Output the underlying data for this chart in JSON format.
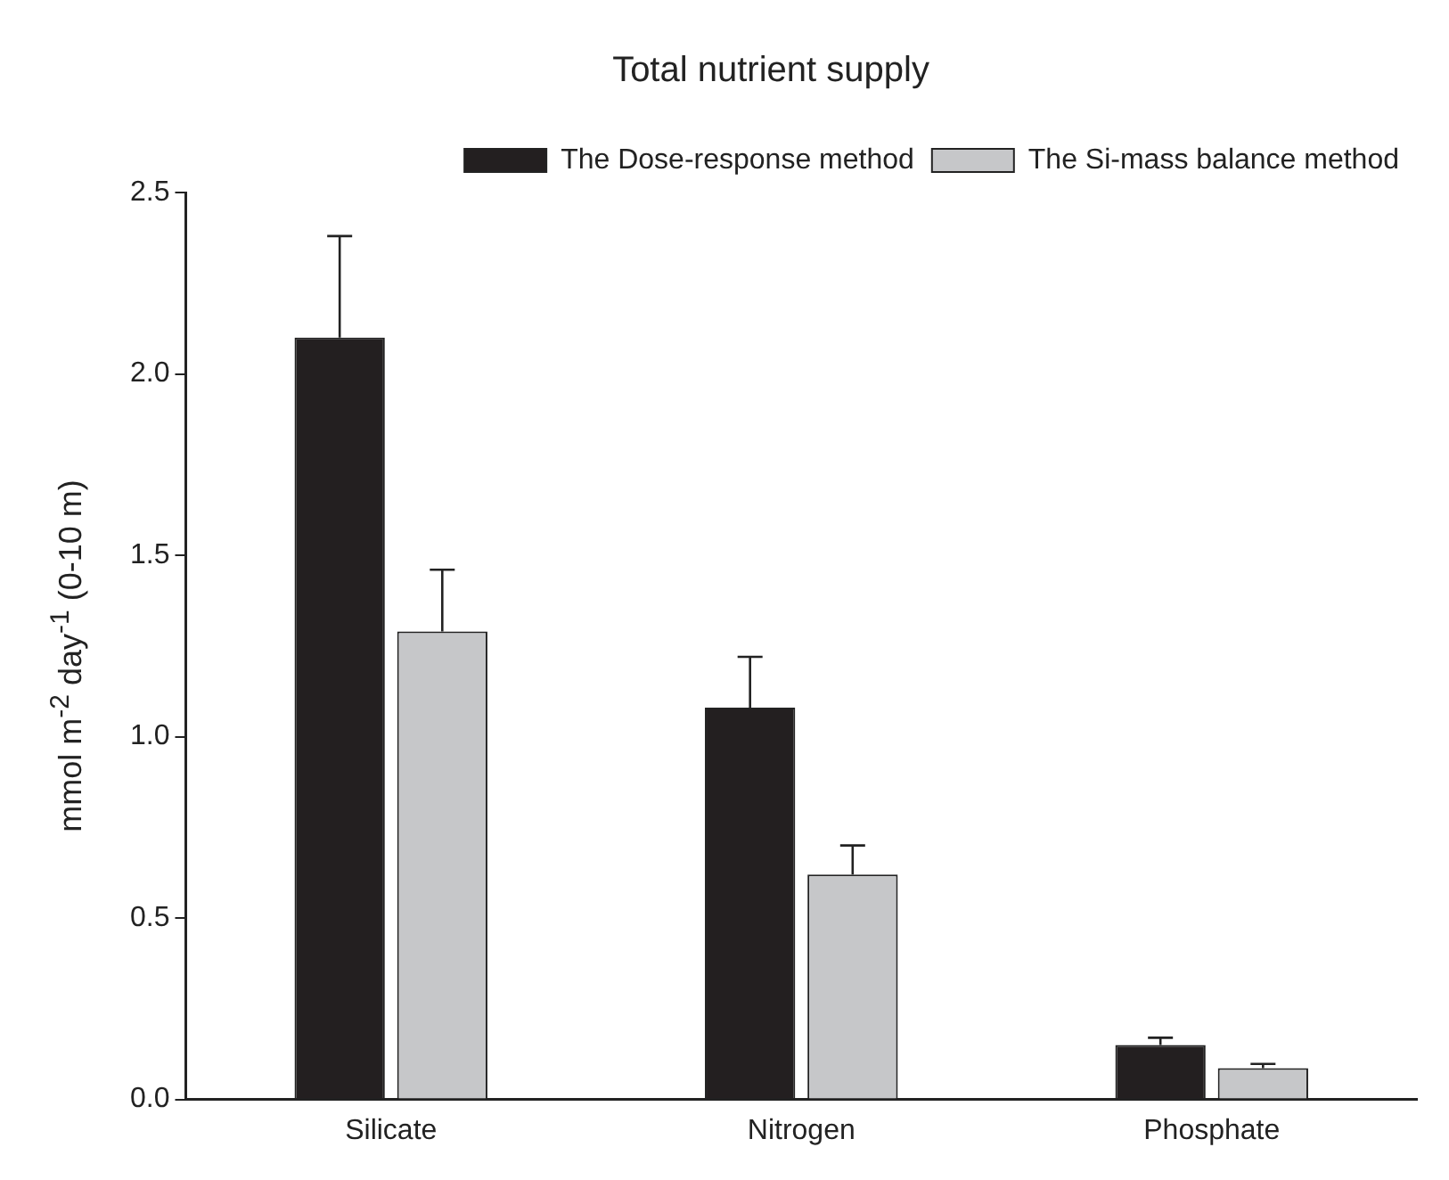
{
  "chart_data": {
    "type": "bar",
    "title": "Total nutrient supply",
    "ylabel": "mmol m$^{-2}$ day$^{-1}$ (0-10 m)",
    "categories": [
      "Silicate",
      "Nitrogen",
      "Phosphate"
    ],
    "series": [
      {
        "name": "The Dose-response method",
        "color": "#231f20",
        "values": [
          2.1,
          1.08,
          0.15
        ],
        "errors": [
          [
            2.1,
            2.38
          ],
          [
            1.08,
            1.22
          ],
          [
            0.15,
            0.17
          ]
        ]
      },
      {
        "name": "The Si-mass balance method",
        "color": "#c6c7c9",
        "values": [
          1.29,
          0.62,
          0.086
        ],
        "errors": [
          [
            1.29,
            1.46
          ],
          [
            0.62,
            0.7
          ],
          [
            0.086,
            0.098
          ]
        ]
      }
    ],
    "ylim": [
      0,
      2.5
    ],
    "yticks": [
      {
        "value": 0,
        "label": "0.0"
      },
      {
        "value": 0.5,
        "label": "0.5"
      },
      {
        "value": 1,
        "label": "1.0"
      },
      {
        "value": 1.5,
        "label": "1.5"
      },
      {
        "value": 2,
        "label": "2.0"
      },
      {
        "value": 2.5,
        "label": "2.5"
      }
    ],
    "grid": false,
    "legend": "top right"
  }
}
